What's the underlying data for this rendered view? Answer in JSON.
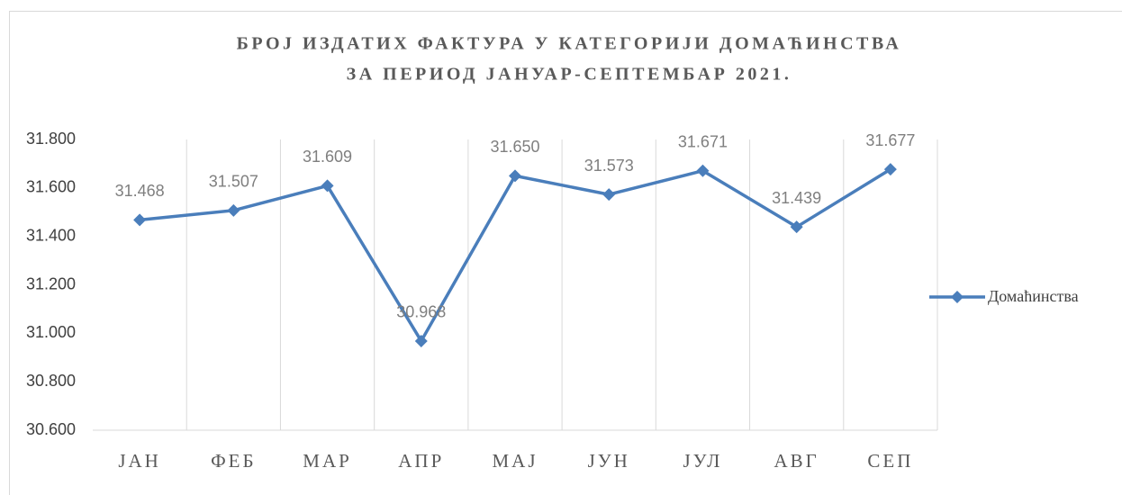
{
  "chart_data": {
    "type": "line",
    "title": [
      "БРОЈ ИЗДАТИХ ФАКТУРА У КАТЕГОРИЈИ ДОМАЋИНСТВА",
      "ЗА ПЕРИОД ЈАНУАР-СЕПТЕМБАР 2021."
    ],
    "categories": [
      "ЈАН",
      "ФЕБ",
      "МАР",
      "АПР",
      "МАЈ",
      "ЈУН",
      "ЈУЛ",
      "АВГ",
      "СЕП"
    ],
    "series": [
      {
        "name": "Домаћинства",
        "color": "#4a7ebb",
        "values": [
          31468,
          31507,
          31609,
          30968,
          31650,
          31573,
          31671,
          31439,
          31677
        ],
        "value_labels": [
          "31.468",
          "31.507",
          "31.609",
          "30.968",
          "31.650",
          "31.573",
          "31.671",
          "31.439",
          "31.677"
        ]
      }
    ],
    "ylim": [
      30600,
      31800
    ],
    "yticks": [
      {
        "value": 30600,
        "label": "30.600"
      },
      {
        "value": 30800,
        "label": "30.800"
      },
      {
        "value": 31000,
        "label": "31.000"
      },
      {
        "value": 31200,
        "label": "31.200"
      },
      {
        "value": 31400,
        "label": "31.400"
      },
      {
        "value": 31600,
        "label": "31.600"
      },
      {
        "value": 31800,
        "label": "31.800"
      }
    ],
    "legend": "right"
  }
}
